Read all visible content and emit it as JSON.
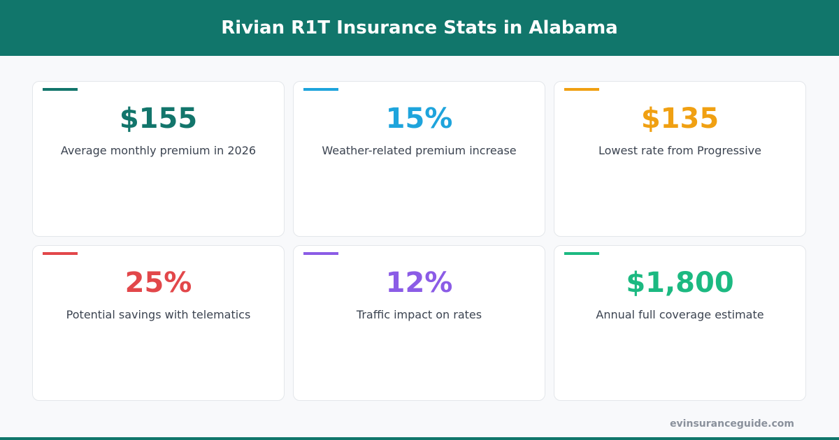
{
  "header": {
    "title": "Rivian R1T Insurance Stats in Alabama"
  },
  "cards": [
    {
      "value": "$155",
      "label": "Average monthly premium in 2026",
      "color": "#12756b"
    },
    {
      "value": "15%",
      "label": "Weather-related premium increase",
      "color": "#1ea4dc"
    },
    {
      "value": "$135",
      "label": "Lowest rate from Progressive",
      "color": "#f0a012"
    },
    {
      "value": "25%",
      "label": "Potential savings with telematics",
      "color": "#e2474a"
    },
    {
      "value": "12%",
      "label": "Traffic impact on rates",
      "color": "#8b5ce6"
    },
    {
      "value": "$1,800",
      "label": "Annual full coverage estimate",
      "color": "#1cb981"
    }
  ],
  "footer": {
    "source": "evinsuranceguide.com"
  }
}
